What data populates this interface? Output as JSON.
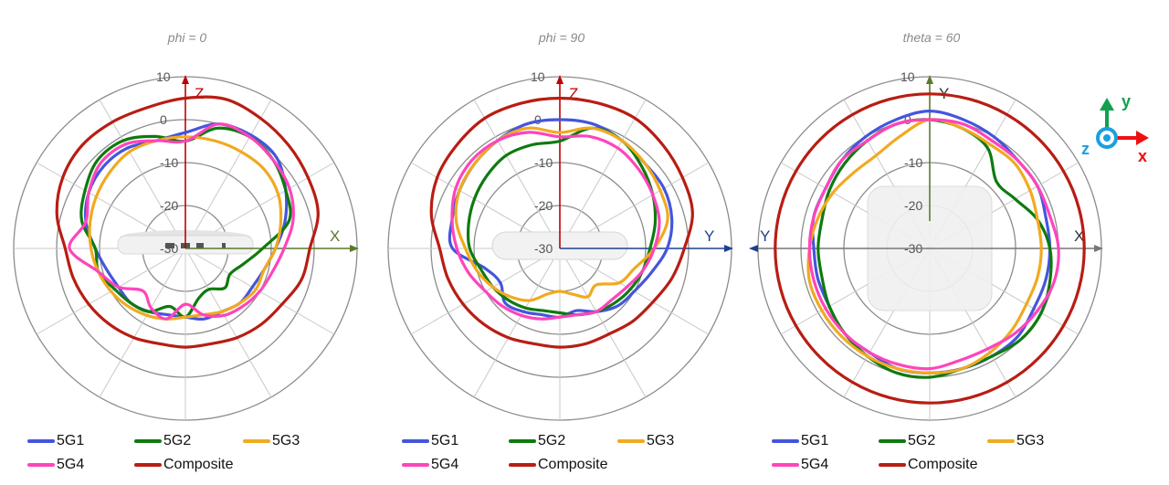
{
  "figure": {
    "panels": [
      {
        "id": "phi0",
        "title": "phi = 0",
        "h_axis": "X",
        "v_axis": "Z",
        "h_color": "#5a7a2a",
        "v_color": "#c00000",
        "device": "side-ports"
      },
      {
        "id": "phi90",
        "title": "phi = 90",
        "h_axis": "Y",
        "v_axis": "Z",
        "h_color": "#1f3f8f",
        "v_color": "#c00000",
        "device": "side-oval"
      },
      {
        "id": "theta60",
        "title": "theta = 60",
        "h_axis": "X",
        "v_axis": "Y",
        "h_axis_left": "Y",
        "h_color": "#777777",
        "v_color": "#5a7a2a",
        "device": "top-square"
      }
    ],
    "ring_labels": [
      "10",
      "0",
      "-10",
      "-20",
      "-30"
    ],
    "legend": [
      {
        "label": "5G1",
        "color": "#4455dd"
      },
      {
        "label": "5G2",
        "color": "#0e7a0e"
      },
      {
        "label": "5G3",
        "color": "#f0aa20"
      },
      {
        "label": "5G4",
        "color": "#ff44bb"
      },
      {
        "label": "Composite",
        "color": "#b81d13"
      }
    ],
    "coordinate_triad": {
      "x_label": "x",
      "y_label": "y",
      "z_label": "z",
      "x_color": "#ee1111",
      "y_color": "#11a050",
      "z_color": "#1aa0e0"
    }
  },
  "chart_data": [
    {
      "type": "polar-line",
      "title": "phi = 0",
      "radial_range": [
        -30,
        10
      ],
      "radial_ticks": [
        10,
        0,
        -10,
        -20,
        -30
      ],
      "angle_step_deg": 30,
      "axes": {
        "up": "Z",
        "right": "X"
      },
      "angles_deg": [
        0,
        15,
        30,
        45,
        60,
        75,
        90,
        105,
        120,
        135,
        150,
        165,
        180,
        195,
        210,
        225,
        240,
        255,
        270,
        285,
        300,
        315,
        330,
        345
      ],
      "series": [
        {
          "name": "5G1",
          "values": [
            -3,
            0,
            0.5,
            0,
            -3,
            -6,
            -9,
            -11,
            -12,
            -12,
            -13,
            -13,
            -14,
            -14,
            -13,
            -12,
            -12,
            -11,
            -9,
            -6,
            -4,
            -3,
            -3,
            -4
          ]
        },
        {
          "name": "5G2",
          "values": [
            -5,
            -1,
            0,
            -1,
            -3,
            -5,
            -12,
            -16,
            -18,
            -17,
            -19,
            -18,
            -14,
            -16,
            -13,
            -12,
            -11,
            -9,
            -9,
            -5,
            -3,
            -1,
            -1,
            -3
          ]
        },
        {
          "name": "5G3",
          "values": [
            -4,
            -4,
            -4,
            -4,
            -5,
            -7,
            -9,
            -11,
            -11,
            -12,
            -13,
            -14,
            -14,
            -13,
            -12,
            -11,
            -10,
            -9,
            -8,
            -7,
            -6,
            -5,
            -4,
            -4
          ]
        },
        {
          "name": "5G4",
          "values": [
            -5,
            0,
            0,
            -1,
            -2,
            -4,
            -7,
            -9,
            -10,
            -11,
            -12,
            -14,
            -17,
            -13,
            -14,
            -16,
            -12,
            -9,
            -3,
            -6,
            -4,
            -2,
            -2,
            -4
          ]
        },
        {
          "name": "Composite",
          "values": [
            5,
            6,
            5,
            4,
            3,
            2,
            -1,
            -2,
            -4,
            -5,
            -6,
            -7,
            -7,
            -7,
            -6,
            -5,
            -4,
            -3,
            -2,
            1,
            3,
            4,
            4,
            4
          ]
        }
      ]
    },
    {
      "type": "polar-line",
      "title": "phi = 90",
      "radial_range": [
        -30,
        10
      ],
      "radial_ticks": [
        10,
        0,
        -10,
        -20,
        -30
      ],
      "angle_step_deg": 30,
      "axes": {
        "up": "Z",
        "right": "Y"
      },
      "angles_deg": [
        0,
        15,
        30,
        45,
        60,
        75,
        90,
        105,
        120,
        135,
        150,
        165,
        180,
        195,
        210,
        225,
        240,
        255,
        270,
        285,
        300,
        315,
        330,
        345
      ],
      "series": [
        {
          "name": "5G1",
          "values": [
            0,
            0,
            -1,
            -2,
            -2,
            -3,
            -5,
            -8,
            -10,
            -11,
            -13,
            -15,
            -14,
            -14,
            -13,
            -12,
            -14,
            -12,
            -5,
            -4,
            -3,
            -2,
            -1,
            0
          ]
        },
        {
          "name": "5G2",
          "values": [
            -5,
            -1,
            -1,
            -3,
            -5,
            -7,
            -9,
            -10,
            -11,
            -12,
            -13,
            -14,
            -15,
            -15,
            -14,
            -13,
            -12,
            -11,
            -9,
            -8,
            -7,
            -6,
            -5,
            -5
          ]
        },
        {
          "name": "5G3",
          "values": [
            -3,
            -1,
            -1,
            -2,
            -3,
            -4,
            -8,
            -12,
            -14,
            -18,
            -17,
            -19,
            -20,
            -19,
            -16,
            -14,
            -12,
            -10,
            -8,
            -5,
            -3,
            -2,
            -1,
            -1
          ]
        },
        {
          "name": "5G4",
          "values": [
            -4,
            -3,
            -3,
            -4,
            -5,
            -6,
            -8,
            -10,
            -12,
            -13,
            -13,
            -14,
            -14,
            -13,
            -12,
            -11,
            -10,
            -8,
            -6,
            -4,
            -2,
            -1,
            -1,
            -2
          ]
        },
        {
          "name": "Composite",
          "values": [
            5,
            5,
            5,
            4,
            3,
            2,
            -1,
            -3,
            -5,
            -6,
            -7,
            -7,
            -7,
            -7,
            -6,
            -5,
            -4,
            -3,
            -2,
            1,
            3,
            4,
            5,
            5
          ]
        }
      ]
    },
    {
      "type": "polar-line",
      "title": "theta = 60",
      "radial_range": [
        -30,
        10
      ],
      "radial_ticks": [
        10,
        0,
        -10,
        -20,
        -30
      ],
      "angle_step_deg": 30,
      "axes": {
        "up": "Y",
        "right": "X"
      },
      "angles_deg": [
        0,
        15,
        30,
        45,
        60,
        75,
        90,
        105,
        120,
        135,
        150,
        165,
        180,
        195,
        210,
        225,
        240,
        255,
        270,
        285,
        300,
        315,
        330,
        345
      ],
      "series": [
        {
          "name": "5G1",
          "values": [
            2,
            1,
            0,
            -1,
            -1,
            -2,
            -2,
            -2,
            -2,
            -1,
            -1,
            -1,
            -1,
            -1,
            -2,
            -2,
            -3,
            -3,
            -3,
            -2,
            -2,
            -1,
            0,
            1
          ]
        },
        {
          "name": "5G2",
          "values": [
            0,
            -1,
            -3,
            -8,
            -7,
            -4,
            -2,
            -1,
            0,
            0,
            -1,
            -1,
            0,
            0,
            -1,
            -2,
            -3,
            -4,
            -4,
            -4,
            -3,
            -2,
            -1,
            0
          ]
        },
        {
          "name": "5G3",
          "values": [
            0,
            -1,
            -2,
            -2,
            -3,
            -4,
            -4,
            -4,
            -4,
            -3,
            -2,
            -1,
            -1,
            -1,
            -1,
            -1,
            -1,
            -1,
            -2,
            -3,
            -4,
            -5,
            -5,
            -3
          ]
        },
        {
          "name": "5G4",
          "values": [
            0,
            0,
            -1,
            -1,
            -1,
            -1,
            0,
            0,
            -1,
            -2,
            -3,
            -3,
            -2,
            -2,
            -2,
            -2,
            -2,
            -2,
            -2,
            -2,
            -2,
            -1,
            -1,
            0
          ]
        },
        {
          "name": "Composite",
          "values": [
            6,
            6,
            6,
            6,
            6,
            6,
            6,
            6,
            6,
            6,
            6,
            6,
            6,
            6,
            6,
            6,
            6,
            6,
            6,
            6,
            6,
            6,
            6,
            6
          ]
        }
      ]
    }
  ]
}
